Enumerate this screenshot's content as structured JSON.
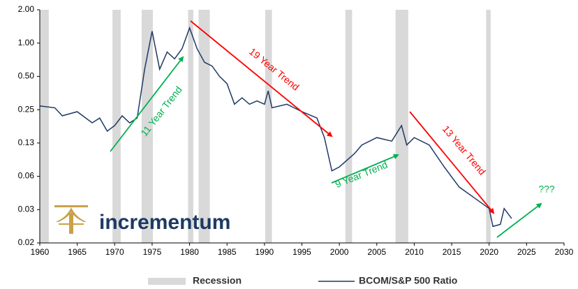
{
  "chart_data": {
    "type": "line",
    "log_scale": true,
    "xlim": [
      1960,
      2030
    ],
    "xticks": [
      1960,
      1965,
      1970,
      1975,
      1980,
      1985,
      1990,
      1995,
      2000,
      2005,
      2010,
      2015,
      2020,
      2025,
      2030
    ],
    "ylim": [
      0.015625,
      2
    ],
    "yticks": [
      {
        "value": 2,
        "label": "2.00"
      },
      {
        "value": 1,
        "label": "1.00"
      },
      {
        "value": 0.5,
        "label": "0.50"
      },
      {
        "value": 0.25,
        "label": "0.25"
      },
      {
        "value": 0.125,
        "label": "0.13"
      },
      {
        "value": 0.0625,
        "label": "0.06"
      },
      {
        "value": 0.03125,
        "label": "0.03"
      },
      {
        "value": 0.015625,
        "label": "0.02"
      }
    ],
    "recessions": {
      "name": "Recession",
      "color": "#d9d9d9",
      "periods": [
        [
          1960.0,
          1961.2
        ],
        [
          1969.7,
          1970.8
        ],
        [
          1973.6,
          1975.1
        ],
        [
          1979.8,
          1980.5
        ],
        [
          1981.2,
          1982.7
        ],
        [
          1990.1,
          1991.0
        ],
        [
          2000.8,
          2001.7
        ],
        [
          2007.5,
          2009.2
        ],
        [
          2019.6,
          2020.2
        ]
      ]
    },
    "series": [
      {
        "name": "BCOM/S&P 500 Ratio",
        "color": "#1f3864",
        "x": [
          1960,
          1962,
          1963,
          1965,
          1967,
          1968,
          1969,
          1970,
          1971,
          1972,
          1973,
          1974,
          1975,
          1976,
          1977,
          1978,
          1979,
          1980,
          1981,
          1982,
          1983,
          1984,
          1985,
          1986,
          1987,
          1988,
          1989,
          1990,
          1990.5,
          1991,
          1993,
          1995,
          1997,
          1998,
          1999,
          2000,
          2002,
          2003,
          2005,
          2007,
          2008.3,
          2009,
          2010,
          2012,
          2014,
          2016,
          2018,
          2020,
          2020.5,
          2021.5,
          2022,
          2023
        ],
        "values": [
          0.27,
          0.26,
          0.22,
          0.24,
          0.19,
          0.21,
          0.16,
          0.18,
          0.22,
          0.19,
          0.21,
          0.58,
          1.28,
          0.58,
          0.83,
          0.72,
          0.89,
          1.37,
          0.89,
          0.67,
          0.62,
          0.5,
          0.43,
          0.28,
          0.32,
          0.28,
          0.3,
          0.28,
          0.37,
          0.26,
          0.28,
          0.24,
          0.21,
          0.14,
          0.07,
          0.076,
          0.1,
          0.12,
          0.14,
          0.13,
          0.18,
          0.12,
          0.14,
          0.12,
          0.076,
          0.05,
          0.04,
          0.032,
          0.022,
          0.023,
          0.032,
          0.026
        ]
      }
    ],
    "annotations": [
      {
        "text": "11 Year Trend",
        "color": "#00b050"
      },
      {
        "text": "19 Year Trend",
        "color": "#ff0000"
      },
      {
        "text": "9 Year Trend",
        "color": "#00b050"
      },
      {
        "text": "13 Year Trend",
        "color": "#ff0000"
      },
      {
        "text": "???",
        "color": "#00b050"
      }
    ],
    "logo": "incrementum"
  }
}
